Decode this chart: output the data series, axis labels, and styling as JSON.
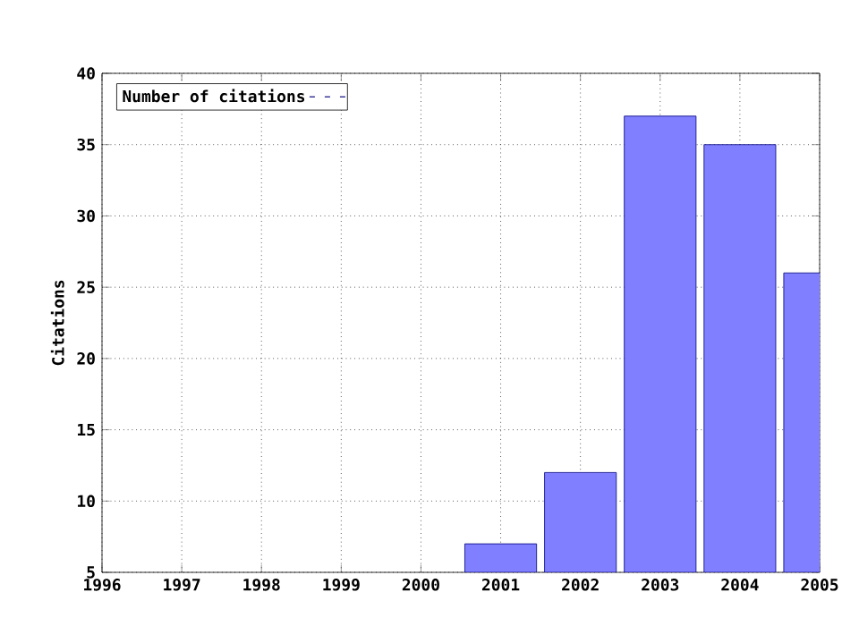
{
  "chart_data": {
    "type": "bar",
    "ylabel": "Citations",
    "x": [
      2001,
      2002,
      2003,
      2004,
      2005
    ],
    "series": [
      {
        "name": "Number of citations",
        "color": "#7f7fff",
        "values": [
          7,
          12,
          37,
          35,
          26
        ]
      }
    ],
    "xlim": [
      1996,
      2005
    ],
    "xticks": [
      1996,
      1997,
      1998,
      1999,
      2000,
      2001,
      2002,
      2003,
      2004,
      2005
    ],
    "ylim": [
      5,
      40
    ],
    "yticks": [
      5,
      10,
      15,
      20,
      25,
      30,
      35,
      40
    ],
    "grid": true,
    "legend": "top left"
  }
}
